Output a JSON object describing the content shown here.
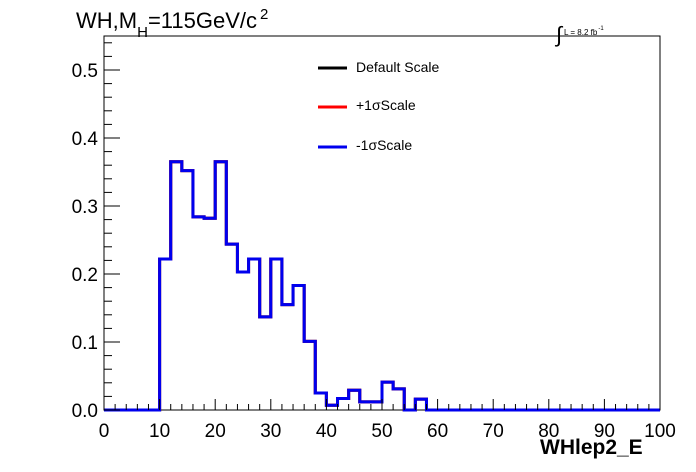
{
  "title": {
    "prefix": "WH,M",
    "sub": "H",
    "middle": "=115GeV/c",
    "sup": "2"
  },
  "lumi": {
    "integral": "∫",
    "text": "L = 8.2 fb",
    "sup": "-1"
  },
  "chart_data": {
    "type": "histogram",
    "xlabel": "WHlep2_E",
    "ylabel": "",
    "xlim": [
      0,
      100
    ],
    "ylim": [
      0,
      0.55
    ],
    "xticks": [
      0,
      10,
      20,
      30,
      40,
      50,
      60,
      70,
      80,
      90,
      100
    ],
    "yticks": [
      0.0,
      0.1,
      0.2,
      0.3,
      0.4,
      0.5
    ],
    "bin_width": 2,
    "bin_edges_start": 0,
    "series": [
      {
        "name": "Default Scale",
        "color": "#000000",
        "values": [
          0,
          0,
          0,
          0,
          0,
          0.222,
          0.365,
          0.352,
          0.284,
          0.282,
          0.365,
          0.244,
          0.203,
          0.222,
          0.137,
          0.222,
          0.155,
          0.183,
          0.101,
          0.025,
          0.007,
          0.017,
          0.029,
          0.012,
          0.012,
          0.041,
          0.031,
          0,
          0.016,
          0,
          0,
          0,
          0,
          0,
          0,
          0,
          0,
          0,
          0,
          0,
          0,
          0,
          0,
          0,
          0,
          0,
          0,
          0,
          0,
          0
        ]
      },
      {
        "name": "+1σScale",
        "color": "#ff0000",
        "values": [
          0,
          0,
          0,
          0,
          0,
          0.222,
          0.365,
          0.352,
          0.284,
          0.282,
          0.365,
          0.244,
          0.203,
          0.222,
          0.137,
          0.222,
          0.155,
          0.183,
          0.101,
          0.025,
          0.007,
          0.017,
          0.029,
          0.012,
          0.012,
          0.041,
          0.031,
          0,
          0.016,
          0,
          0,
          0,
          0,
          0,
          0,
          0,
          0,
          0,
          0,
          0,
          0,
          0,
          0,
          0,
          0,
          0,
          0,
          0,
          0,
          0
        ]
      },
      {
        "name": "-1σScale",
        "color": "#0000ee",
        "values": [
          0,
          0,
          0,
          0,
          0,
          0.222,
          0.365,
          0.352,
          0.284,
          0.282,
          0.365,
          0.244,
          0.203,
          0.222,
          0.137,
          0.222,
          0.155,
          0.183,
          0.101,
          0.025,
          0.007,
          0.017,
          0.029,
          0.012,
          0.012,
          0.041,
          0.031,
          0,
          0.016,
          0,
          0,
          0,
          0,
          0,
          0,
          0,
          0,
          0,
          0,
          0,
          0,
          0,
          0,
          0,
          0,
          0,
          0,
          0,
          0,
          0
        ]
      }
    ]
  }
}
